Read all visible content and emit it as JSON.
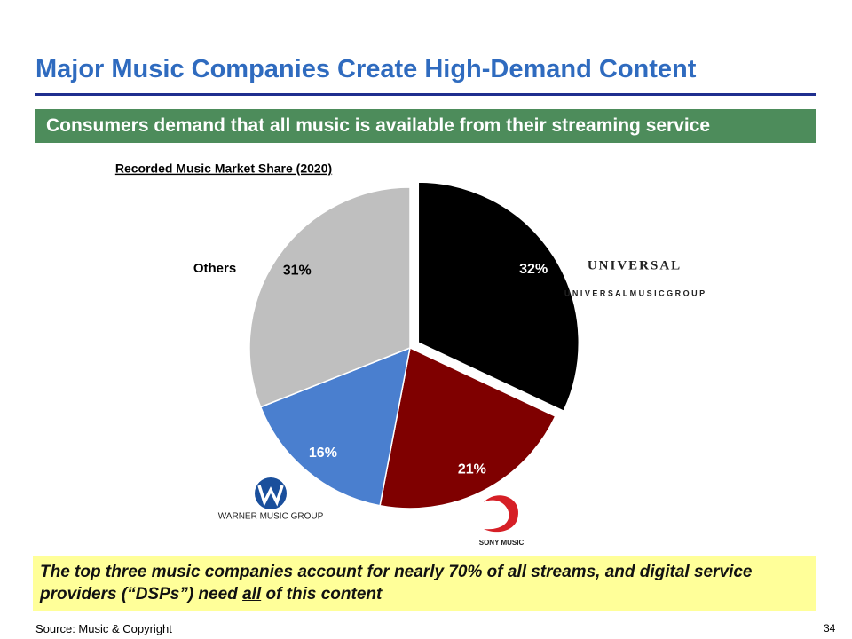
{
  "header": {
    "title": "Major Music Companies Create High-Demand Content",
    "banner": "Consumers demand that all music is available from their streaming service"
  },
  "chart_data": {
    "type": "pie",
    "title": "Recorded Music Market Share (2020)",
    "categories": [
      "U N I V E R S A L   M U S I C   G R O U P",
      "SONY MUSIC",
      "WARNER MUSIC GROUP",
      "Others"
    ],
    "values": [
      32,
      21,
      16,
      31
    ],
    "value_labels": [
      "32%",
      "21%",
      "16%",
      "31%"
    ],
    "colors": [
      "#000000",
      "#7f0000",
      "#4a7fcf",
      "#bfbfbf"
    ]
  },
  "logos": {
    "universal_wordmark": "UNIVERSAL"
  },
  "note": {
    "parts": [
      "The top three music companies account for nearly 70% of all streams, and digital service providers (“DSPs”) need ",
      "all",
      " of this content"
    ]
  },
  "footer": {
    "source": "Source: Music & Copyright",
    "page": "34"
  }
}
